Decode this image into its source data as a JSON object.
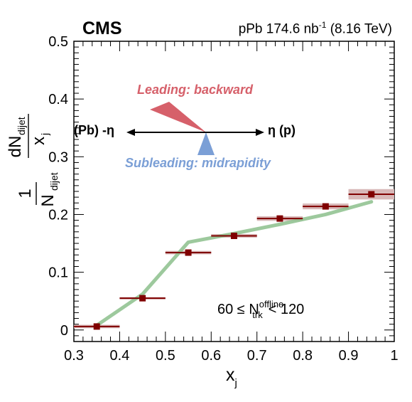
{
  "header": {
    "experiment": "CMS",
    "lumi_main": "pPb 174.6 nb",
    "lumi_exp": "-1",
    "lumi_energy": "(8.16 TeV)"
  },
  "annotations": {
    "leading": "Leading: backward",
    "subleading": "Subleading: midrapidity",
    "pb_label": "(Pb) -η",
    "p_label": "η (p)",
    "mult_prefix": "60 ≤ N",
    "mult_sup": "offline",
    "mult_sub": "trk",
    "mult_suffix": "< 120"
  },
  "colors": {
    "data_marker": "#800000",
    "syst_band": "#d8b8b8",
    "model_line": "#8cc08c",
    "leading": "#d6606a",
    "subleading": "#7b9fd6"
  },
  "chart_data": {
    "type": "scatter",
    "xlabel": "x",
    "xlabel_sub": "j",
    "ylabel": "1/N_dijet dN_dijet/x_j",
    "xlim": [
      0.3,
      1.0
    ],
    "ylim": [
      -0.02,
      0.5
    ],
    "xticks": [
      "0.3",
      "0.4",
      "0.5",
      "0.6",
      "0.7",
      "0.8",
      "0.9",
      "1"
    ],
    "yticks": [
      "0",
      "0.1",
      "0.2",
      "0.3",
      "0.4",
      "0.5"
    ],
    "grid": false,
    "series": [
      {
        "kind": "data",
        "x": [
          0.35,
          0.45,
          0.55,
          0.65,
          0.75,
          0.85,
          0.95
        ],
        "xerr": [
          0.05,
          0.05,
          0.05,
          0.05,
          0.05,
          0.05,
          0.05
        ],
        "y": [
          0.006,
          0.055,
          0.134,
          0.163,
          0.193,
          0.214,
          0.235
        ],
        "syst": [
          0.003,
          0.002,
          0.003,
          0.003,
          0.004,
          0.005,
          0.009
        ]
      },
      {
        "kind": "model-band",
        "x": [
          0.35,
          0.45,
          0.55,
          0.65,
          0.75,
          0.85,
          0.95
        ],
        "y": [
          0.008,
          0.062,
          0.152,
          0.167,
          0.183,
          0.2,
          0.222
        ]
      }
    ]
  }
}
